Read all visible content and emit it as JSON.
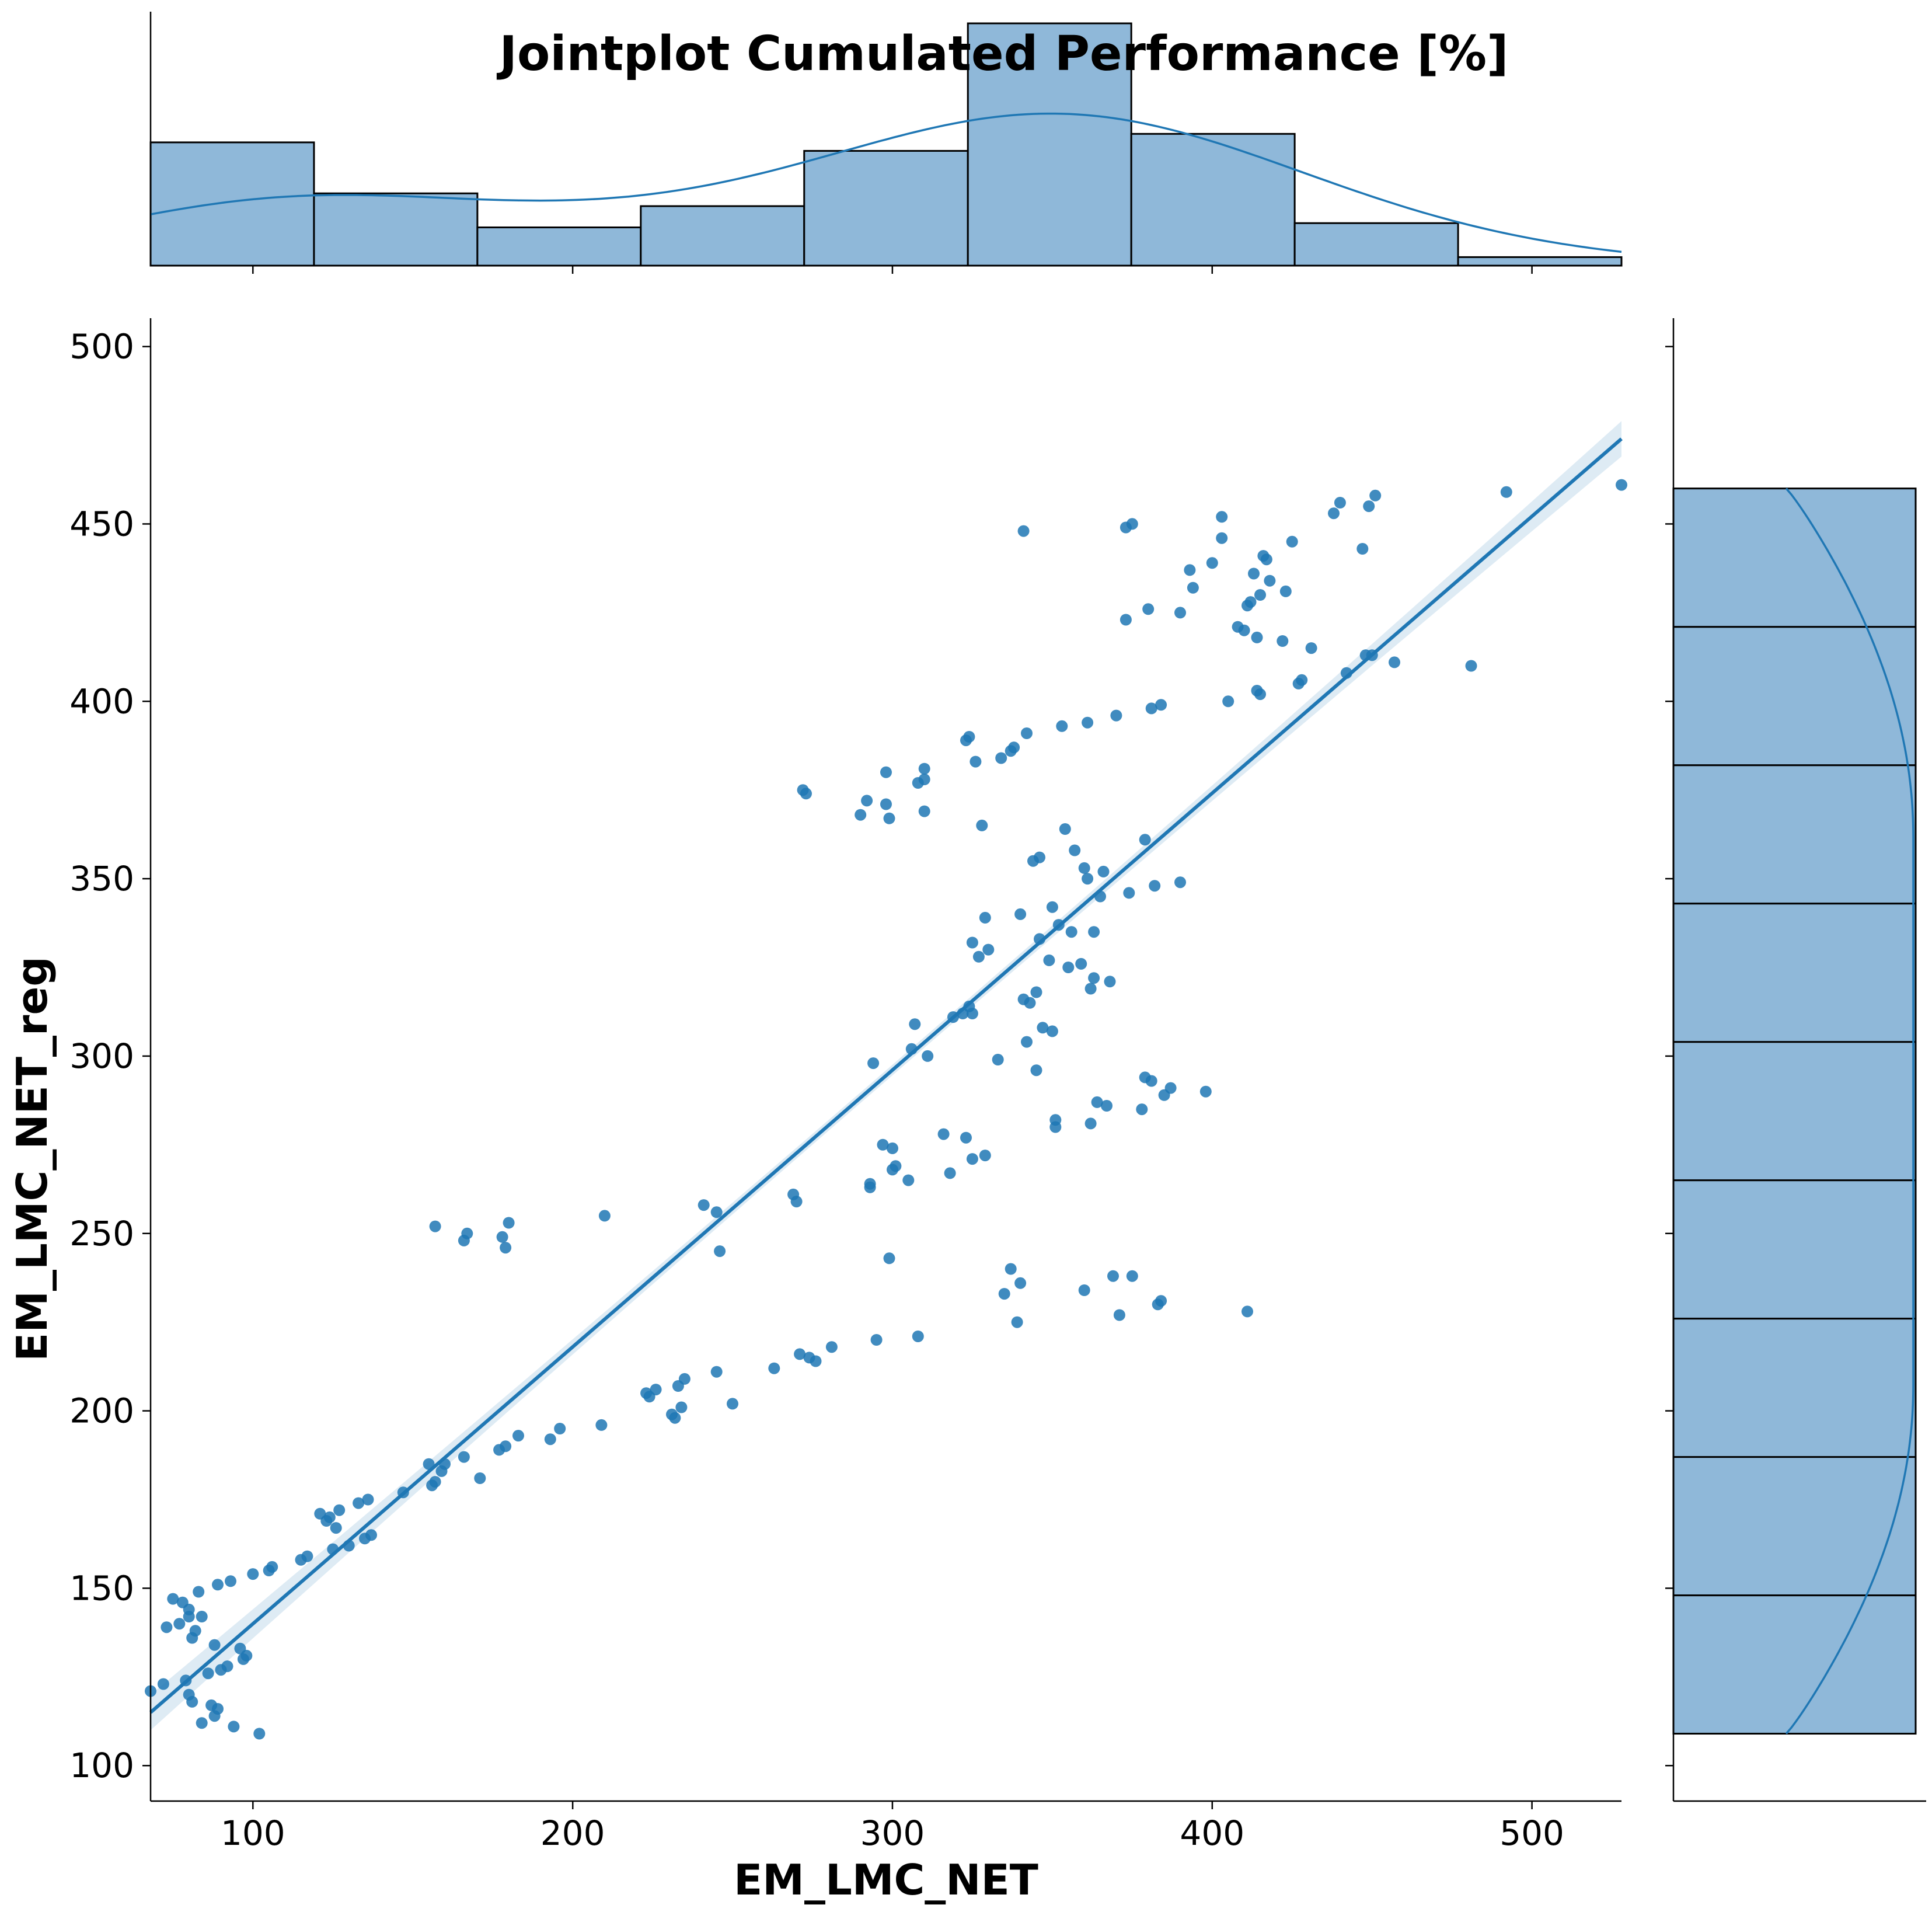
{
  "chart_data": {
    "type": "scatter",
    "title": "Jointplot Cumulated Performance [%]",
    "xlabel": "EM_LMC_NET",
    "ylabel": "EM_LMC_NET_reg",
    "xlim": [
      68,
      528
    ],
    "ylim": [
      90,
      508
    ],
    "xticks": [
      100,
      200,
      300,
      400,
      500
    ],
    "yticks": [
      100,
      150,
      200,
      250,
      300,
      350,
      400,
      450,
      500
    ],
    "grid": false,
    "colors": {
      "points": "#1f77b4",
      "hist": "#8fb8d9",
      "edge": "#000000"
    },
    "regression": {
      "x": [
        68,
        528
      ],
      "y": [
        115,
        474
      ],
      "ci_halfwidth_ends": 5,
      "ci_halfwidth_mid": 1.5
    },
    "x_marginal_hist": {
      "bin_edges": [
        68,
        119.1,
        170.2,
        221.3,
        272.4,
        323.6,
        374.7,
        425.8,
        476.9,
        528
      ],
      "counts": [
        29,
        17,
        9,
        14,
        27,
        57,
        31,
        10,
        2
      ]
    },
    "y_marginal_hist": {
      "bin_edges": [
        109,
        148,
        187,
        226,
        265,
        304,
        343,
        382,
        421,
        460
      ],
      "counts": [
        80,
        80,
        80,
        80,
        80,
        80,
        80,
        80,
        80
      ]
    },
    "points": [
      [
        68,
        121
      ],
      [
        72,
        123
      ],
      [
        73,
        139
      ],
      [
        75,
        147
      ],
      [
        78,
        146
      ],
      [
        77,
        140
      ],
      [
        80,
        144
      ],
      [
        80,
        142
      ],
      [
        81,
        136
      ],
      [
        82,
        138
      ],
      [
        83,
        149
      ],
      [
        84,
        142
      ],
      [
        79,
        124
      ],
      [
        80,
        120
      ],
      [
        81,
        118
      ],
      [
        84,
        112
      ],
      [
        87,
        117
      ],
      [
        88,
        114
      ],
      [
        89,
        116
      ],
      [
        86,
        126
      ],
      [
        88,
        134
      ],
      [
        90,
        127
      ],
      [
        92,
        128
      ],
      [
        89,
        151
      ],
      [
        93,
        152
      ],
      [
        94,
        111
      ],
      [
        96,
        133
      ],
      [
        97,
        130
      ],
      [
        98,
        131
      ],
      [
        100,
        154
      ],
      [
        102,
        109
      ],
      [
        105,
        155
      ],
      [
        106,
        156
      ],
      [
        115,
        158
      ],
      [
        117,
        159
      ],
      [
        121,
        171
      ],
      [
        123,
        169
      ],
      [
        124,
        170
      ],
      [
        125,
        161
      ],
      [
        126,
        167
      ],
      [
        127,
        172
      ],
      [
        130,
        162
      ],
      [
        133,
        174
      ],
      [
        135,
        164
      ],
      [
        136,
        175
      ],
      [
        137,
        165
      ],
      [
        147,
        177
      ],
      [
        155,
        185
      ],
      [
        156,
        179
      ],
      [
        157,
        180
      ],
      [
        159,
        183
      ],
      [
        160,
        185
      ],
      [
        166,
        187
      ],
      [
        171,
        181
      ],
      [
        177,
        189
      ],
      [
        179,
        190
      ],
      [
        183,
        193
      ],
      [
        193,
        192
      ],
      [
        196,
        195
      ],
      [
        209,
        196
      ],
      [
        157,
        252
      ],
      [
        166,
        248
      ],
      [
        167,
        250
      ],
      [
        178,
        249
      ],
      [
        179,
        246
      ],
      [
        180,
        253
      ],
      [
        210,
        255
      ],
      [
        223,
        205
      ],
      [
        224,
        204
      ],
      [
        226,
        206
      ],
      [
        231,
        199
      ],
      [
        232,
        198
      ],
      [
        233,
        207
      ],
      [
        234,
        201
      ],
      [
        235,
        209
      ],
      [
        241,
        258
      ],
      [
        245,
        211
      ],
      [
        245,
        256
      ],
      [
        246,
        245
      ],
      [
        250,
        202
      ],
      [
        263,
        212
      ],
      [
        269,
        261
      ],
      [
        270,
        259
      ],
      [
        271,
        216
      ],
      [
        272,
        375
      ],
      [
        273,
        374
      ],
      [
        274,
        215
      ],
      [
        276,
        214
      ],
      [
        281,
        218
      ],
      [
        290,
        368
      ],
      [
        292,
        372
      ],
      [
        293,
        264
      ],
      [
        293,
        263
      ],
      [
        294,
        298
      ],
      [
        295,
        220
      ],
      [
        297,
        275
      ],
      [
        298,
        380
      ],
      [
        298,
        371
      ],
      [
        299,
        367
      ],
      [
        299,
        243
      ],
      [
        300,
        274
      ],
      [
        300,
        268
      ],
      [
        301,
        269
      ],
      [
        305,
        265
      ],
      [
        306,
        302
      ],
      [
        307,
        309
      ],
      [
        308,
        221
      ],
      [
        308,
        377
      ],
      [
        310,
        378
      ],
      [
        310,
        381
      ],
      [
        310,
        369
      ],
      [
        311,
        300
      ],
      [
        316,
        278
      ],
      [
        318,
        267
      ],
      [
        319,
        311
      ],
      [
        322,
        312
      ],
      [
        323,
        277
      ],
      [
        323,
        389
      ],
      [
        324,
        390
      ],
      [
        324,
        314
      ],
      [
        325,
        271
      ],
      [
        325,
        312
      ],
      [
        325,
        332
      ],
      [
        326,
        383
      ],
      [
        327,
        328
      ],
      [
        328,
        365
      ],
      [
        329,
        339
      ],
      [
        329,
        272
      ],
      [
        330,
        330
      ],
      [
        333,
        299
      ],
      [
        334,
        384
      ],
      [
        335,
        233
      ],
      [
        337,
        240
      ],
      [
        337,
        386
      ],
      [
        338,
        387
      ],
      [
        339,
        225
      ],
      [
        340,
        340
      ],
      [
        340,
        236
      ],
      [
        341,
        316
      ],
      [
        342,
        391
      ],
      [
        342,
        304
      ],
      [
        343,
        315
      ],
      [
        344,
        355
      ],
      [
        345,
        296
      ],
      [
        345,
        318
      ],
      [
        346,
        356
      ],
      [
        346,
        333
      ],
      [
        347,
        308
      ],
      [
        349,
        327
      ],
      [
        350,
        307
      ],
      [
        350,
        342
      ],
      [
        351,
        282
      ],
      [
        351,
        280
      ],
      [
        352,
        337
      ],
      [
        353,
        393
      ],
      [
        354,
        364
      ],
      [
        355,
        325
      ],
      [
        356,
        335
      ],
      [
        357,
        358
      ],
      [
        359,
        326
      ],
      [
        360,
        353
      ],
      [
        360,
        234
      ],
      [
        361,
        394
      ],
      [
        361,
        350
      ],
      [
        362,
        281
      ],
      [
        362,
        319
      ],
      [
        363,
        322
      ],
      [
        363,
        335
      ],
      [
        364,
        287
      ],
      [
        365,
        345
      ],
      [
        366,
        352
      ],
      [
        367,
        286
      ],
      [
        368,
        321
      ],
      [
        369,
        238
      ],
      [
        370,
        396
      ],
      [
        371,
        227
      ],
      [
        373,
        449
      ],
      [
        374,
        346
      ],
      [
        375,
        450
      ],
      [
        375,
        238
      ],
      [
        378,
        285
      ],
      [
        379,
        361
      ],
      [
        379,
        294
      ],
      [
        380,
        426
      ],
      [
        381,
        398
      ],
      [
        381,
        293
      ],
      [
        382,
        348
      ],
      [
        383,
        230
      ],
      [
        384,
        231
      ],
      [
        384,
        399
      ],
      [
        385,
        289
      ],
      [
        387,
        291
      ],
      [
        390,
        349
      ],
      [
        390,
        425
      ],
      [
        393,
        437
      ],
      [
        394,
        432
      ],
      [
        398,
        290
      ],
      [
        400,
        439
      ],
      [
        403,
        452
      ],
      [
        403,
        446
      ],
      [
        341,
        448
      ],
      [
        373,
        423
      ],
      [
        405,
        400
      ],
      [
        408,
        421
      ],
      [
        410,
        420
      ],
      [
        411,
        427
      ],
      [
        411,
        228
      ],
      [
        412,
        428
      ],
      [
        413,
        436
      ],
      [
        414,
        403
      ],
      [
        414,
        418
      ],
      [
        415,
        402
      ],
      [
        415,
        430
      ],
      [
        416,
        441
      ],
      [
        417,
        440
      ],
      [
        418,
        434
      ],
      [
        422,
        417
      ],
      [
        423,
        431
      ],
      [
        425,
        445
      ],
      [
        427,
        405
      ],
      [
        428,
        406
      ],
      [
        431,
        415
      ],
      [
        438,
        453
      ],
      [
        440,
        456
      ],
      [
        442,
        408
      ],
      [
        447,
        443
      ],
      [
        448,
        413
      ],
      [
        449,
        455
      ],
      [
        450,
        413
      ],
      [
        451,
        458
      ],
      [
        457,
        411
      ],
      [
        481,
        410
      ],
      [
        492,
        459
      ],
      [
        528,
        461
      ]
    ]
  }
}
